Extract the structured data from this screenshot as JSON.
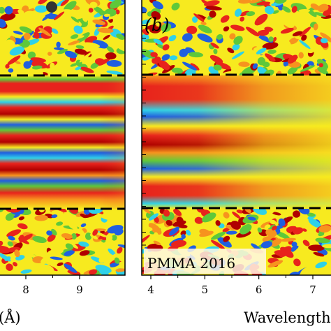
{
  "chart_data": [
    {
      "type": "heatmap",
      "panel": "left",
      "x_ticks": [
        8,
        9
      ],
      "x_tick_labels": [
        "8",
        "9"
      ],
      "xlabel_fragment": "(Å)",
      "dashed_reference_lines": 2,
      "colormap": "jet",
      "pattern": "fine horizontal fringes between the dashed lines, noisy texture outside",
      "grid": false,
      "legend": "none"
    },
    {
      "type": "heatmap",
      "panel": "right",
      "panel_label": "(b)",
      "x_ticks": [
        4,
        5,
        6,
        7
      ],
      "x_tick_labels": [
        "4",
        "5",
        "6",
        "7"
      ],
      "xlabel_fragment": "Wavelength",
      "annotation": "PMMA 2016",
      "dashed_reference_lines": 2,
      "colormap": "jet",
      "pattern": "broad horizontal fringes between the dashed lines fading toward longer wavelength, noisy texture outside",
      "grid": false,
      "legend": "none"
    }
  ],
  "colors": {
    "dark_red": "#b00000",
    "red": "#e8231c",
    "orange": "#f7931e",
    "yellow": "#f7ea1f",
    "green": "#5ec83a",
    "cyan": "#2fd1e8",
    "blue": "#1f5fe0",
    "dashed_line": "#000000"
  }
}
